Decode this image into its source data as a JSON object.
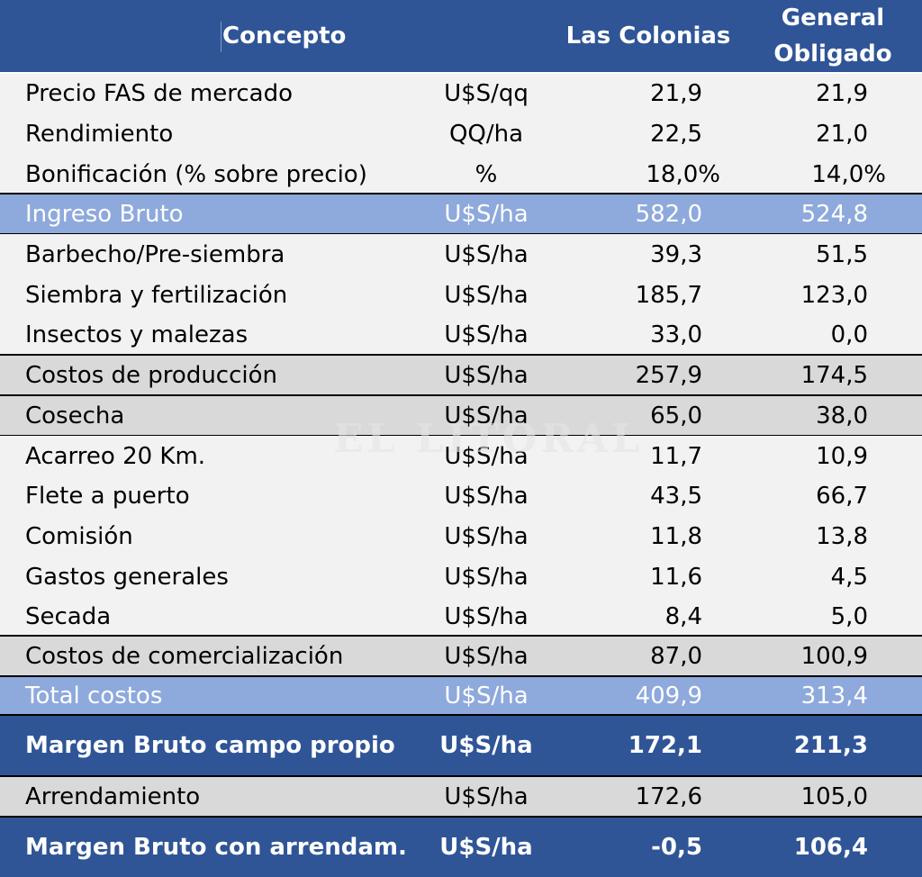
{
  "header": {
    "concepto": "Concepto",
    "las_colonias": "Las Colonias",
    "general_obligado": "General Obligado"
  },
  "rows": [
    {
      "concepto": "Precio FAS de mercado",
      "unidad": "U$S/qq",
      "las_colonias": "21,9",
      "general_obligado": "21,9"
    },
    {
      "concepto": "Rendimiento",
      "unidad": "QQ/ha",
      "las_colonias": "22,5",
      "general_obligado": "21,0"
    },
    {
      "concepto": "Bonificación (% sobre precio)",
      "unidad": "%",
      "las_colonias": "18,0%",
      "general_obligado": "14,0%"
    },
    {
      "concepto": "Ingreso Bruto",
      "unidad": "U$S/ha",
      "las_colonias": "582,0",
      "general_obligado": "524,8"
    },
    {
      "concepto": "Barbecho/Pre-siembra",
      "unidad": "U$S/ha",
      "las_colonias": "39,3",
      "general_obligado": "51,5"
    },
    {
      "concepto": "Siembra y fertilización",
      "unidad": "U$S/ha",
      "las_colonias": "185,7",
      "general_obligado": "123,0"
    },
    {
      "concepto": "Insectos y malezas",
      "unidad": "U$S/ha",
      "las_colonias": "33,0",
      "general_obligado": "0,0"
    },
    {
      "concepto": "Costos de producción",
      "unidad": "U$S/ha",
      "las_colonias": "257,9",
      "general_obligado": "174,5"
    },
    {
      "concepto": "Cosecha",
      "unidad": "U$S/ha",
      "las_colonias": "65,0",
      "general_obligado": "38,0"
    },
    {
      "concepto": "Acarreo 20 Km.",
      "unidad": "U$S/ha",
      "las_colonias": "11,7",
      "general_obligado": "10,9"
    },
    {
      "concepto": "Flete a puerto",
      "unidad": "U$S/ha",
      "las_colonias": "43,5",
      "general_obligado": "66,7"
    },
    {
      "concepto": "Comisión",
      "unidad": "U$S/ha",
      "las_colonias": "11,8",
      "general_obligado": "13,8"
    },
    {
      "concepto": "Gastos generales",
      "unidad": "U$S/ha",
      "las_colonias": "11,6",
      "general_obligado": "4,5"
    },
    {
      "concepto": "Secada",
      "unidad": "U$S/ha",
      "las_colonias": "8,4",
      "general_obligado": "5,0"
    },
    {
      "concepto": "Costos de comercialización",
      "unidad": "U$S/ha",
      "las_colonias": "87,0",
      "general_obligado": "100,9"
    },
    {
      "concepto": "Total costos",
      "unidad": "U$S/ha",
      "las_colonias": "409,9",
      "general_obligado": "313,4"
    },
    {
      "concepto": "Margen Bruto campo propio",
      "unidad": "U$S/ha",
      "las_colonias": "172,1",
      "general_obligado": "211,3"
    },
    {
      "concepto": "Arrendamiento",
      "unidad": "U$S/ha",
      "las_colonias": "172,6",
      "general_obligado": "105,0"
    },
    {
      "concepto": "Margen Bruto con arrendam.",
      "unidad": "U$S/ha",
      "las_colonias": "-0,5",
      "general_obligado": "106,4"
    }
  ],
  "watermark": "EL LITORAL"
}
